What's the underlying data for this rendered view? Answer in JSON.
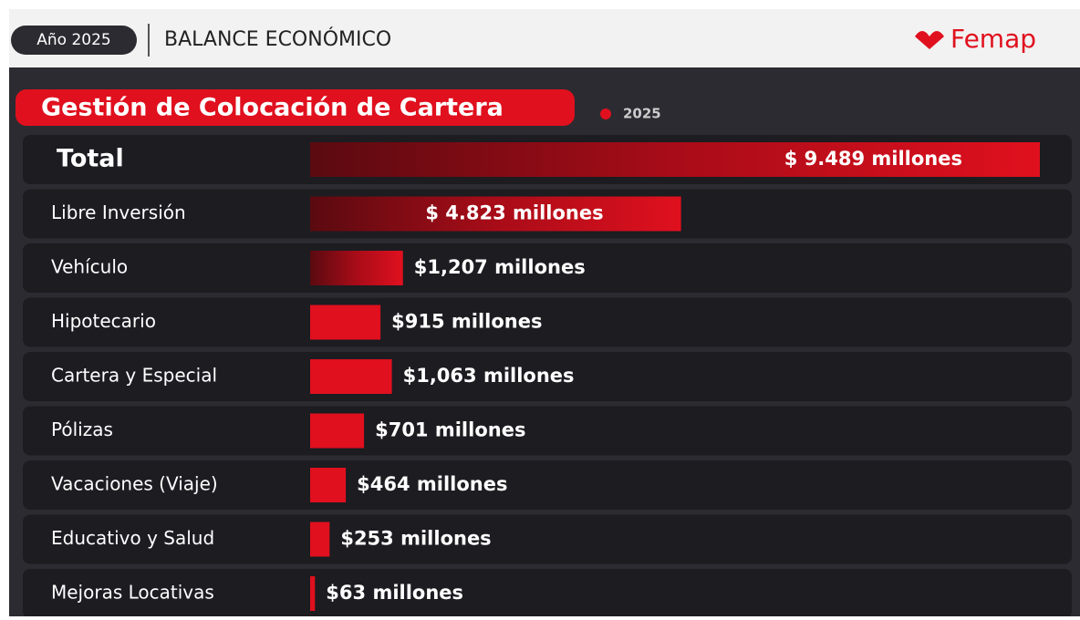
{
  "header": {
    "year": "Año 2025",
    "section": "BALANCE ECONÓMICO",
    "brand": "Femap"
  },
  "chart_data": {
    "type": "bar",
    "orientation": "horizontal",
    "title": "Gestión de Colocación de Cartera",
    "categories": [
      "Total",
      "Libre Inversión",
      "Vehículo",
      "Hipotecario",
      "Cartera y Especial",
      "Pólizas",
      "Vacaciones (Viaje)",
      "Educativo y Salud",
      "Mejoras Locativas"
    ],
    "series": [
      {
        "name": "2025",
        "color": "#e0101e",
        "values": [
          9489,
          4823,
          1207,
          915,
          1063,
          701,
          464,
          253,
          63
        ],
        "value_labels": [
          "$ 9.489 millones",
          "$ 4.823 millones",
          "$1,207 millones",
          "$915 millones",
          "$1,063 millones",
          "$701 millones",
          "$464 millones",
          "$253 millones",
          "$63 millones"
        ]
      }
    ]
  }
}
